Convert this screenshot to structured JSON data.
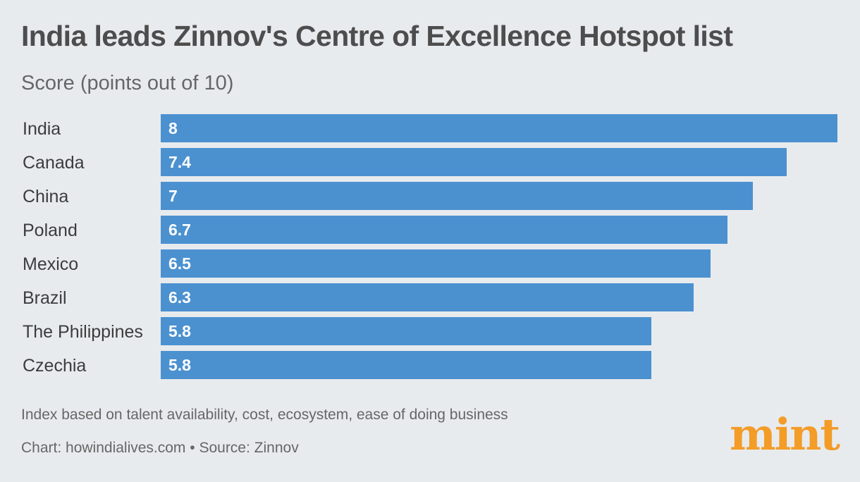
{
  "header": {
    "title": "India leads Zinnov's Centre of Excellence Hotspot list",
    "subtitle": "Score (points out of 10)"
  },
  "footer": {
    "note": "Index based on talent availability, cost, ecosystem, ease of doing business",
    "source": "Chart: howindialives.com • Source: Zinnov",
    "logo": "mint"
  },
  "colors": {
    "bar": "#4b91d0",
    "bar_label": "#ffffff",
    "category_label": "#3c3c3c",
    "logo": "#f39c28",
    "background": "#e8ebee"
  },
  "chart_data": {
    "type": "bar",
    "orientation": "horizontal",
    "title": "India leads Zinnov's Centre of Excellence Hotspot list",
    "subtitle": "Score (points out of 10)",
    "categories": [
      "India",
      "Canada",
      "China",
      "Poland",
      "Mexico",
      "Brazil",
      "The Philippines",
      "Czechia"
    ],
    "values": [
      8,
      7.4,
      7,
      6.7,
      6.5,
      6.3,
      5.8,
      5.8
    ],
    "value_labels": [
      "8",
      "7.4",
      "7",
      "6.7",
      "6.5",
      "6.3",
      "5.8",
      "5.8"
    ],
    "xlim": [
      0,
      8
    ],
    "grid": false,
    "legend": "none"
  }
}
